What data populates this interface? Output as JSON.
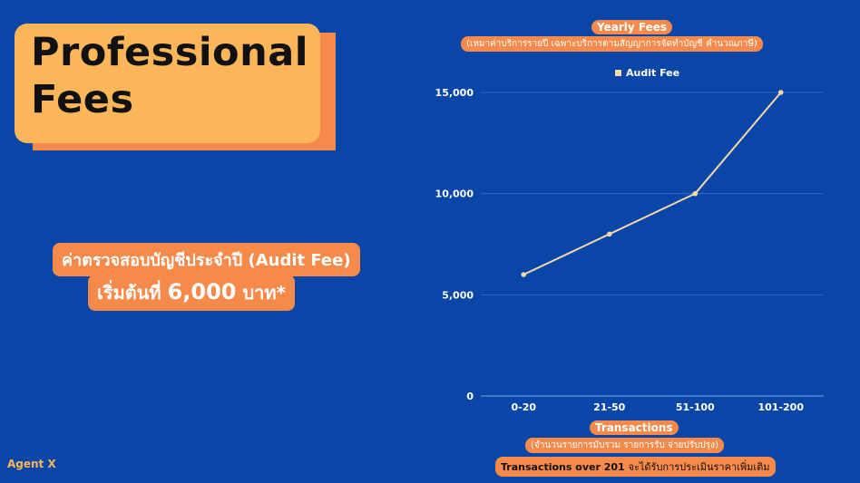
{
  "hero": {
    "title_line1": "Professional",
    "title_line2": "Fees",
    "audit_line1": "ค่าตรวจสอบบัญชีประจำปี (Audit Fee)",
    "audit_line2_prefix": "เริ่มต้นที่",
    "audit_line2_amount": "6,000",
    "audit_line2_suffix": "บาท*"
  },
  "brand": "Agent X",
  "footnote": {
    "bold": "Transactions over 201",
    "rest": "จะได้รับการประเมินราคาเพิ่มเติม"
  },
  "colors": {
    "background": "#0a46a8",
    "accent_orange": "#f58a4b",
    "accent_yellow": "#fbb65a",
    "line": "#f6d9a8"
  },
  "chart_data": {
    "type": "line",
    "title": "Yearly Fees",
    "subtitle": "(เหมาค่าบริการรายปี เฉพาะบริการตามสัญญาการจัดทำบัญชี คำนวณภาษี)",
    "xlabel": "Transactions",
    "xlabel_sub": "(จำนวนรายการมับรวม รายการรับ จ่ายปรับปรุง)",
    "ylabel": "",
    "categories": [
      "0-20",
      "21-50",
      "51-100",
      "101-200"
    ],
    "series": [
      {
        "name": "Audit Fee",
        "values": [
          6000,
          8000,
          10000,
          15000
        ]
      }
    ],
    "ylim": [
      0,
      15000
    ],
    "yticks": [
      0,
      5000,
      10000,
      15000
    ],
    "ytick_labels": [
      "0",
      "5,000",
      "10,000",
      "15,000"
    ],
    "grid": true,
    "legend": "top-center"
  }
}
